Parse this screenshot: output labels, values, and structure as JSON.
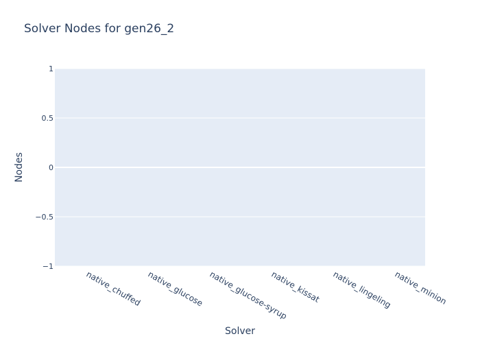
{
  "chart_data": {
    "type": "bar",
    "title": "Solver Nodes for gen26_2",
    "xlabel": "Solver",
    "ylabel": "Nodes",
    "categories": [
      "native_chuffed",
      "native_glucose",
      "native_glucose-syrup",
      "native_kissat",
      "native_lingeling",
      "native_minion"
    ],
    "values": [
      0,
      0,
      0,
      0,
      0,
      0
    ],
    "ylim": [
      -1,
      1
    ],
    "yticks": [
      1,
      0.5,
      0,
      -0.5,
      -1
    ],
    "ytick_labels": [
      "1",
      "0.5",
      "0",
      "−0.5",
      "−1"
    ],
    "grid": true,
    "legend": "none",
    "colors": {
      "plot_bg": "#e5ecf6",
      "grid": "#ffffff",
      "text": "#2a3f5f",
      "bar": "#636efa"
    }
  }
}
